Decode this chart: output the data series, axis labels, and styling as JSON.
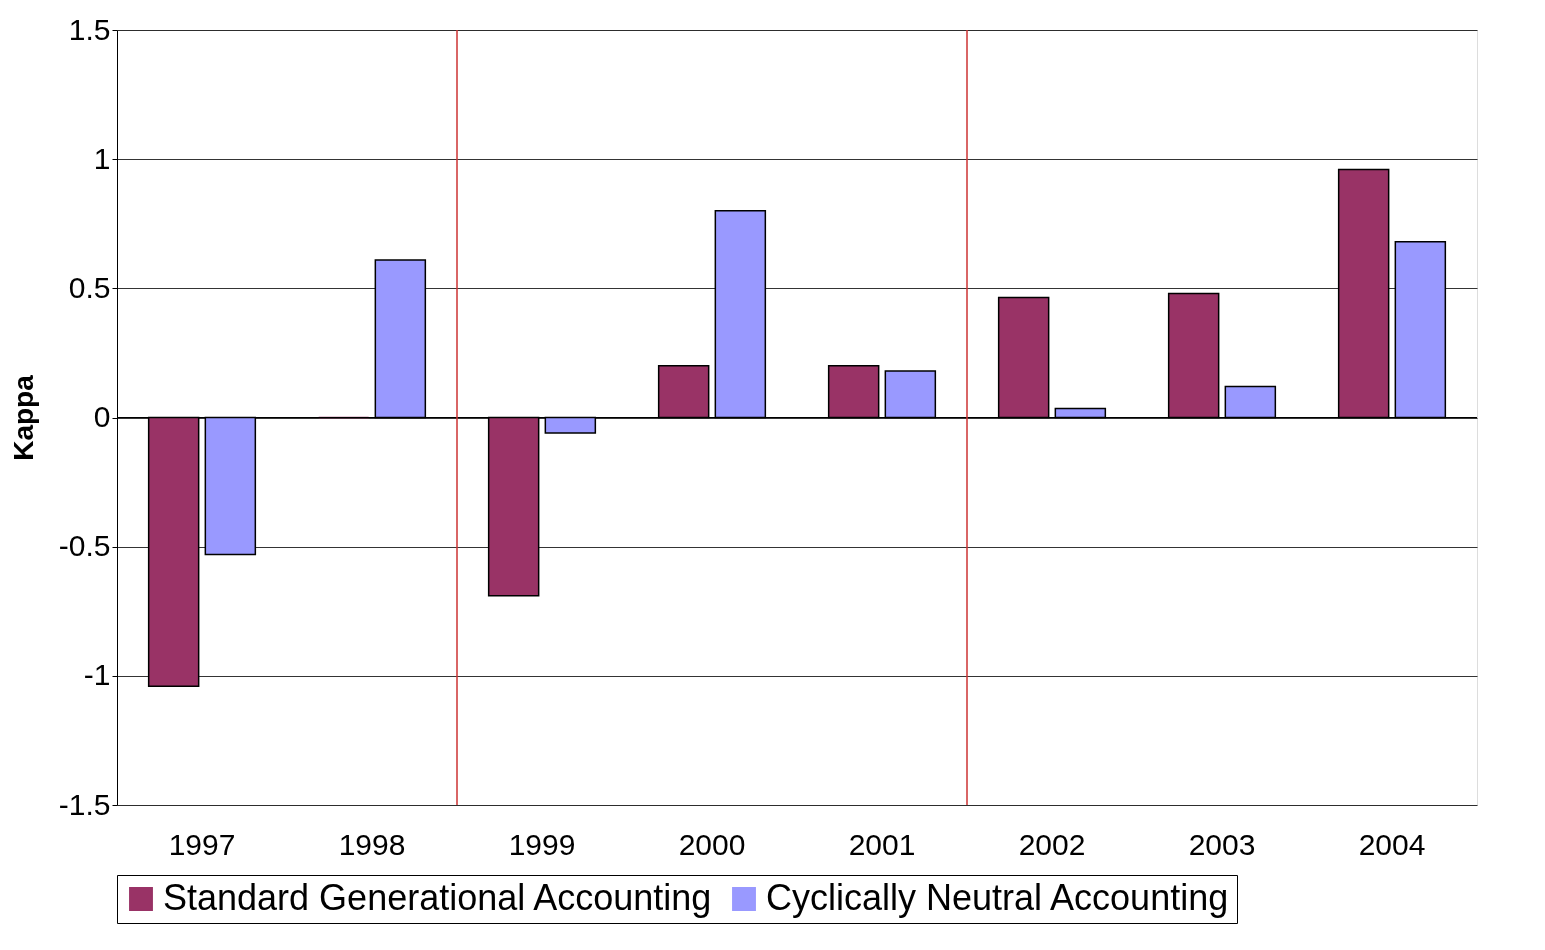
{
  "chart_data": {
    "type": "bar",
    "ylabel": "Kappa",
    "categories": [
      "1997",
      "1998",
      "1999",
      "2000",
      "2001",
      "2002",
      "2003",
      "2004"
    ],
    "series": [
      {
        "name": "Standard Generational Accounting",
        "color": "#993366",
        "values": [
          -1.04,
          0.0,
          -0.69,
          0.2,
          0.2,
          0.465,
          0.48,
          0.96
        ]
      },
      {
        "name": "Cyclically Neutral Accounting",
        "color": "#9999ff",
        "values": [
          -0.53,
          0.61,
          -0.06,
          0.8,
          0.18,
          0.035,
          0.12,
          0.68
        ]
      }
    ],
    "ylim": [
      -1.5,
      1.5
    ],
    "yticks": [
      -1.5,
      -1,
      -0.5,
      0,
      0.5,
      1,
      1.5
    ],
    "grid": "y",
    "legend": "bottom"
  }
}
